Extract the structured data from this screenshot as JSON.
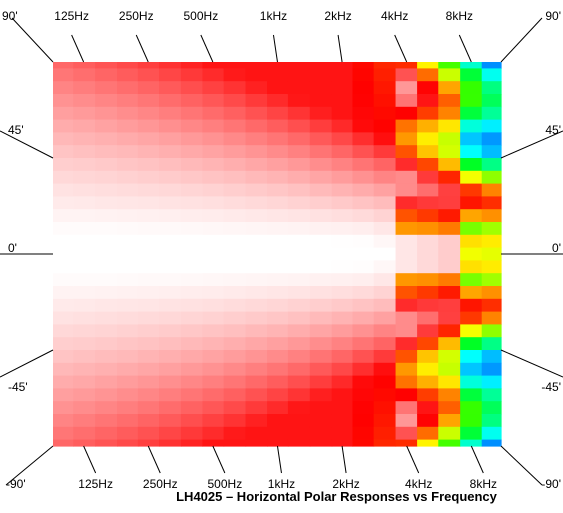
{
  "chart_data": {
    "type": "heatmap",
    "title": "LH4025 – Horizontal Polar Responses vs Frequency",
    "x_tick_labels": [
      "125Hz",
      "250Hz",
      "500Hz",
      "1kHz",
      "2kHz",
      "4kHz",
      "8kHz"
    ],
    "x_ticks_hz": [
      125,
      250,
      500,
      1000,
      2000,
      4000,
      8000
    ],
    "x_range_hz": [
      90,
      11000
    ],
    "x_scale": "log",
    "y_tick_labels_left": [
      "90'",
      "45'",
      "0'",
      "-45'",
      "-90'"
    ],
    "y_tick_labels_right": [
      "90'",
      "45'",
      "0'",
      "-45'",
      "-90'"
    ],
    "y_ticks_deg": [
      90,
      45,
      0,
      -45,
      -90
    ],
    "y_range_deg": [
      -90,
      90
    ],
    "angles_deg": [
      90,
      84,
      78,
      72,
      66,
      60,
      54,
      48,
      42,
      36,
      30,
      24,
      18,
      12,
      6,
      0,
      -6,
      -12,
      -18,
      -24,
      -30,
      -36,
      -42,
      -48,
      -54,
      -60,
      -66,
      -72,
      -78,
      -84,
      -90
    ],
    "frequency_bands_hz": [
      100,
      125,
      160,
      200,
      250,
      315,
      400,
      500,
      630,
      800,
      1000,
      1250,
      1600,
      2000,
      2500,
      3150,
      4000,
      5000,
      6300,
      8000,
      10000
    ],
    "color_scale": [
      "#ffffff",
      "#ff0000",
      "#ffff00",
      "#00ff00",
      "#00ffff",
      "#0000ff",
      "#ff00ff",
      "#000000"
    ],
    "color_scale_note": "",
    "grid": false,
    "legend": "none"
  }
}
